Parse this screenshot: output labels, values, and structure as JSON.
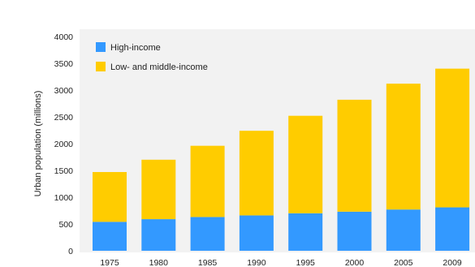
{
  "chart_data": {
    "type": "bar",
    "stacked": true,
    "title": "",
    "xlabel": "",
    "ylabel": "Urban population (millions)",
    "categories": [
      "1975",
      "1980",
      "1985",
      "1990",
      "1995",
      "2000",
      "2005",
      "2009"
    ],
    "series": [
      {
        "name": "High-income",
        "values": [
          540,
          590,
          630,
          660,
          700,
          730,
          770,
          810
        ],
        "color": "#3399ff"
      },
      {
        "name": "Low- and middle-income",
        "values": [
          930,
          1110,
          1330,
          1580,
          1820,
          2090,
          2350,
          2590
        ],
        "color": "#ffcc00"
      }
    ],
    "ylim": [
      0,
      4000
    ],
    "yticks": [
      "0",
      "500",
      "1000",
      "1500",
      "2000",
      "2500",
      "3000",
      "3500",
      "4000"
    ],
    "grid": false,
    "legend_position": "top-left",
    "plot_background": "#f2f2f2"
  }
}
